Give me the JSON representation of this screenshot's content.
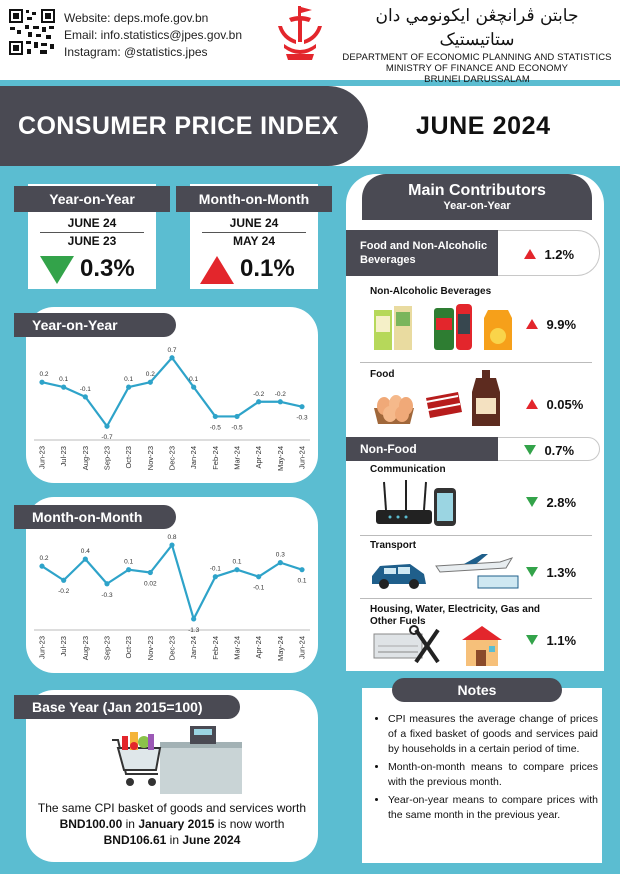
{
  "header": {
    "website": "Website: deps.mofe.gov.bn",
    "email": "Email: info.statistics@jpes.gov.bn",
    "instagram": "Instagram: @statistics.jpes",
    "jawi_name": "جابتن ڤرانچڠن ايکونومي دان ستاتيستيک",
    "dept_line1": "DEPARTMENT OF ECONOMIC PLANNING AND STATISTICS",
    "dept_line2": "MINISTRY OF FINANCE AND ECONOMY",
    "dept_line3": "BRUNEI DARUSSALAM"
  },
  "title": "CONSUMER PRICE INDEX",
  "period": "JUNE 2024",
  "yoy_box": {
    "label": "Year-on-Year",
    "period1": "JUNE 24",
    "period2": "JUNE 23",
    "direction": "down",
    "value": "0.3%"
  },
  "mom_box": {
    "label": "Month-on-Month",
    "period1": "JUNE 24",
    "period2": "MAY 24",
    "direction": "up",
    "value": "0.1%"
  },
  "chart_data": [
    {
      "type": "line",
      "title": "Year-on-Year",
      "categories": [
        "Jun-23",
        "Jul-23",
        "Aug-23",
        "Sep-23",
        "Oct-23",
        "Nov-23",
        "Dec-23",
        "Jan-24",
        "Feb-24",
        "Mar-24",
        "Apr-24",
        "May-24",
        "Jun-24"
      ],
      "values": [
        0.2,
        0.1,
        -0.1,
        -0.7,
        0.1,
        0.2,
        0.7,
        0.1,
        -0.5,
        -0.5,
        -0.2,
        -0.2,
        -0.3
      ],
      "labels": [
        "0.2",
        "0.1",
        "-0.1",
        "-0.7",
        "0.1",
        "0.2",
        "0.7",
        "0.1",
        "-0.5",
        "-0.5",
        "-0.2",
        "-0.2",
        "-0.3"
      ],
      "ylim": [
        -0.9,
        0.9
      ],
      "line_color": "#2ea3c9",
      "grid": false
    },
    {
      "type": "line",
      "title": "Month-on-Month",
      "categories": [
        "Jun-23",
        "Jul-23",
        "Aug-23",
        "Sep-23",
        "Oct-23",
        "Nov-23",
        "Dec-23",
        "Jan-24",
        "Feb-24",
        "Mar-24",
        "Apr-24",
        "May-24",
        "Jun-24"
      ],
      "values": [
        0.2,
        -0.2,
        0.4,
        -0.3,
        0.1,
        0.02,
        0.8,
        -1.3,
        -0.1,
        0.1,
        -0.1,
        0.3,
        0.1
      ],
      "labels": [
        "0.2",
        "-0.2",
        "0.4",
        "-0.3",
        "0.1",
        "0.02",
        "0.8",
        "-1.3",
        "-0.1",
        "0.1",
        "-0.1",
        "0.3",
        "0.1"
      ],
      "ylim": [
        -1.5,
        1.0
      ],
      "line_color": "#2ea3c9",
      "grid": false
    }
  ],
  "contributors": {
    "title": "Main Contributors",
    "subtitle": "Year-on-Year",
    "food_group": {
      "label": "Food and Non-Alcoholic Beverages",
      "direction": "up",
      "value": "1.2%"
    },
    "food_items": [
      {
        "label": "Non-Alcoholic Beverages",
        "direction": "up",
        "value": "9.9%"
      },
      {
        "label": "Food",
        "direction": "up",
        "value": "0.05%"
      }
    ],
    "nonfood_group": {
      "label": "Non-Food",
      "direction": "down",
      "value": "0.7%"
    },
    "nonfood_items": [
      {
        "label": "Communication",
        "direction": "down",
        "value": "2.8%"
      },
      {
        "label": "Transport",
        "direction": "down",
        "value": "1.3%"
      },
      {
        "label": "Housing, Water, Electricity, Gas and Other Fuels",
        "direction": "down",
        "value": "1.1%"
      }
    ]
  },
  "base_year": {
    "label": "Base Year (Jan 2015=100)",
    "text_line1": "The same CPI basket of goods and services worth",
    "amount1": "BND100.00",
    "text_in1": "in",
    "date1": "January 2015",
    "text_mid": "is now worth",
    "amount2": "BND106.61",
    "text_in2": "in",
    "date2": "June 2024"
  },
  "notes": {
    "title": "Notes",
    "items": [
      "CPI measures the average change of prices of a fixed basket of goods and services paid by households in a certain period of time.",
      "Month-on-month means to compare prices with the previous month.",
      "Year-on-year means to compare prices with the same month in the previous year."
    ]
  },
  "colors": {
    "dark": "#4a4a53",
    "background": "#5bbdd1",
    "up": "#e3262c",
    "down": "#33a34a",
    "line": "#2ea3c9"
  }
}
